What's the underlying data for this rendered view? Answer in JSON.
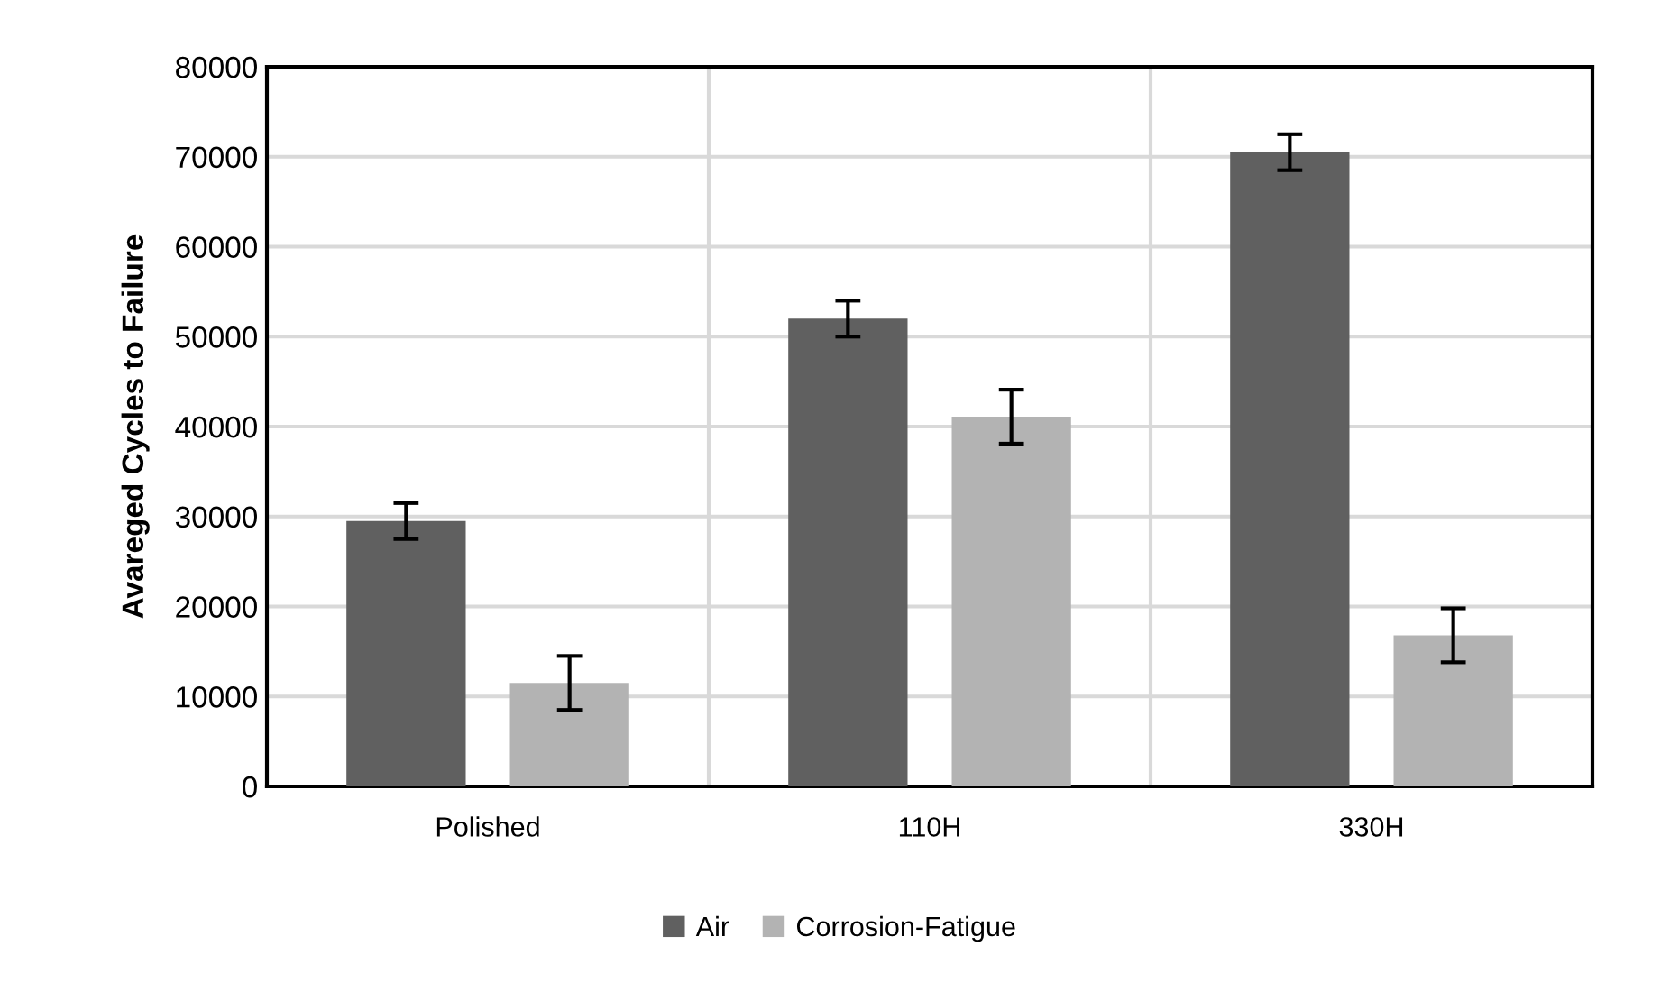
{
  "chart_data": {
    "type": "bar",
    "ylabel": "Avareged Cycles to Failure",
    "categories": [
      "Polished",
      "110H",
      "330H"
    ],
    "series": [
      {
        "name": "Air",
        "color": "#606060",
        "values": [
          29500,
          52000,
          70500
        ],
        "errors": [
          2000,
          2000,
          2000
        ]
      },
      {
        "name": "Corrosion-Fatigue",
        "color": "#b3b3b3",
        "values": [
          11500,
          41100,
          16800
        ],
        "errors": [
          3000,
          3000,
          3000
        ]
      }
    ],
    "ylim": [
      0,
      80000
    ],
    "yticks": [
      0,
      10000,
      20000,
      30000,
      40000,
      50000,
      60000,
      70000,
      80000
    ],
    "grid": true,
    "legend": "bottom"
  }
}
